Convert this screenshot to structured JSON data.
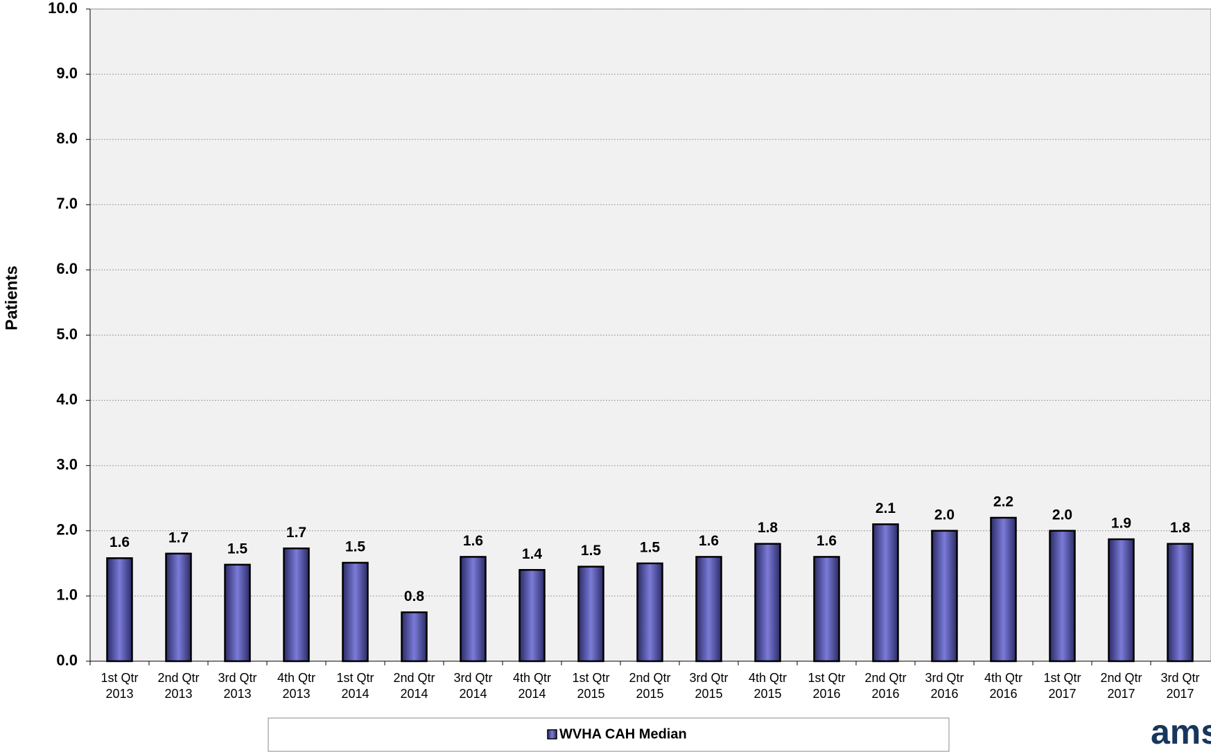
{
  "chart_data": {
    "type": "bar",
    "y_label": "Patients",
    "categories": [
      "1st Qtr 2013",
      "2nd Qtr 2013",
      "3rd Qtr 2013",
      "4th Qtr 2013",
      "1st Qtr 2014",
      "2nd Qtr 2014",
      "3rd Qtr 2014",
      "4th Qtr 2014",
      "1st Qtr 2015",
      "2nd Qtr 2015",
      "3rd Qtr 2015",
      "4th Qtr 2015",
      "1st Qtr 2016",
      "2nd Qtr 2016",
      "3rd Qtr 2016",
      "4th Qtr 2016",
      "1st Qtr 2017",
      "2nd Qtr 2017",
      "3rd Qtr 2017"
    ],
    "series": [
      {
        "name": "WVHA CAH Median",
        "color": "#7b7bd9",
        "values": [
          1.58,
          1.65,
          1.48,
          1.73,
          1.51,
          0.75,
          1.6,
          1.4,
          1.45,
          1.5,
          1.6,
          1.8,
          1.6,
          2.1,
          2.0,
          2.2,
          2.0,
          1.87,
          1.8
        ],
        "value_labels": [
          "1.6",
          "1.7",
          "1.5",
          "1.7",
          "1.5",
          "0.8",
          "1.6",
          "1.4",
          "1.5",
          "1.5",
          "1.6",
          "1.8",
          "1.6",
          "2.1",
          "2.0",
          "2.2",
          "2.0",
          "1.9",
          "1.8"
        ]
      }
    ],
    "ylim": [
      0,
      10
    ],
    "yticks": [
      {
        "value": 0,
        "label": "0.0"
      },
      {
        "value": 1,
        "label": "1.0"
      },
      {
        "value": 2,
        "label": "2.0"
      },
      {
        "value": 3,
        "label": "3.0"
      },
      {
        "value": 4,
        "label": "4.0"
      },
      {
        "value": 5,
        "label": "5.0"
      },
      {
        "value": 6,
        "label": "6.0"
      },
      {
        "value": 7,
        "label": "7.0"
      },
      {
        "value": 8,
        "label": "8.0"
      },
      {
        "value": 9,
        "label": "9.0"
      },
      {
        "value": 10,
        "label": "10.0"
      }
    ],
    "grid": true,
    "legend_position": "bottom",
    "logo": "ams"
  }
}
